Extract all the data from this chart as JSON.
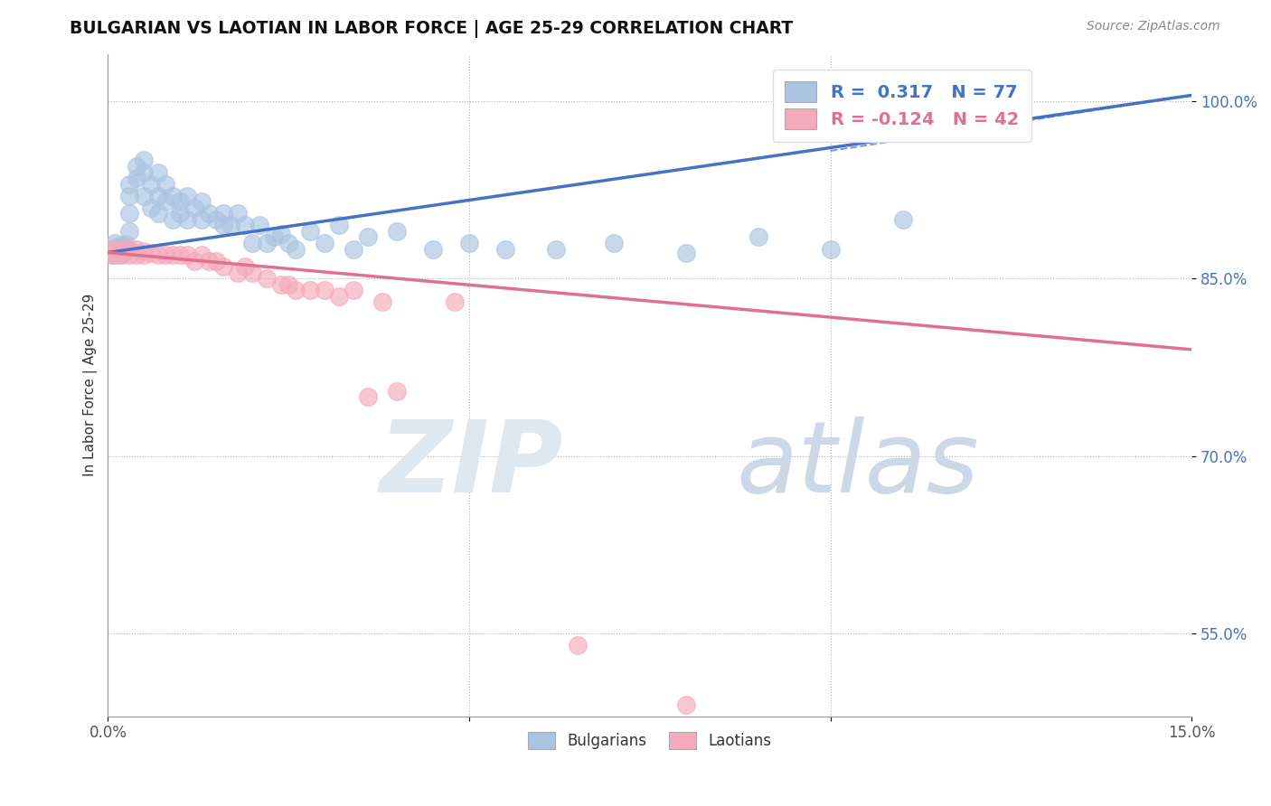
{
  "title": "BULGARIAN VS LAOTIAN IN LABOR FORCE | AGE 25-29 CORRELATION CHART",
  "source": "Source: ZipAtlas.com",
  "ylabel": "In Labor Force | Age 25-29",
  "xlim": [
    0.0,
    0.15
  ],
  "ylim": [
    0.48,
    1.04
  ],
  "xticks": [
    0.0,
    0.05,
    0.1,
    0.15
  ],
  "xticklabels": [
    "0.0%",
    "",
    "",
    "15.0%"
  ],
  "yticks": [
    0.55,
    0.7,
    0.85,
    1.0
  ],
  "yticklabels": [
    "55.0%",
    "70.0%",
    "85.0%",
    "100.0%"
  ],
  "bulgarian_R": 0.317,
  "bulgarian_N": 77,
  "laotian_R": -0.124,
  "laotian_N": 42,
  "blue_color": "#aac4e2",
  "pink_color": "#f5aabb",
  "blue_line_color": "#4472c4",
  "pink_line_color": "#e07090",
  "bg_color": "#ffffff",
  "blue_line_y0": 0.872,
  "blue_line_y1": 1.005,
  "pink_line_y0": 0.872,
  "pink_line_y1": 0.79,
  "bulgarian_x": [
    0.0005,
    0.0006,
    0.0007,
    0.0008,
    0.0009,
    0.001,
    0.001,
    0.0011,
    0.0012,
    0.0013,
    0.0014,
    0.0015,
    0.0016,
    0.0017,
    0.0018,
    0.0019,
    0.002,
    0.002,
    0.0021,
    0.0022,
    0.0023,
    0.0024,
    0.0025,
    0.003,
    0.003,
    0.003,
    0.003,
    0.004,
    0.004,
    0.005,
    0.005,
    0.005,
    0.006,
    0.006,
    0.007,
    0.007,
    0.007,
    0.008,
    0.008,
    0.009,
    0.009,
    0.01,
    0.01,
    0.011,
    0.011,
    0.012,
    0.013,
    0.013,
    0.014,
    0.015,
    0.016,
    0.016,
    0.017,
    0.018,
    0.019,
    0.02,
    0.021,
    0.022,
    0.023,
    0.024,
    0.025,
    0.026,
    0.028,
    0.03,
    0.032,
    0.034,
    0.036,
    0.04,
    0.045,
    0.05,
    0.055,
    0.062,
    0.07,
    0.08,
    0.09,
    0.1,
    0.11
  ],
  "bulgarian_y": [
    0.872,
    0.875,
    0.87,
    0.875,
    0.872,
    0.875,
    0.88,
    0.872,
    0.875,
    0.877,
    0.87,
    0.875,
    0.873,
    0.876,
    0.878,
    0.871,
    0.873,
    0.877,
    0.876,
    0.872,
    0.874,
    0.879,
    0.876,
    0.92,
    0.93,
    0.905,
    0.89,
    0.945,
    0.935,
    0.95,
    0.94,
    0.92,
    0.93,
    0.91,
    0.92,
    0.94,
    0.905,
    0.93,
    0.915,
    0.92,
    0.9,
    0.915,
    0.905,
    0.92,
    0.9,
    0.91,
    0.915,
    0.9,
    0.905,
    0.9,
    0.905,
    0.895,
    0.895,
    0.905,
    0.895,
    0.88,
    0.895,
    0.88,
    0.885,
    0.888,
    0.88,
    0.875,
    0.89,
    0.88,
    0.895,
    0.875,
    0.885,
    0.89,
    0.875,
    0.88,
    0.875,
    0.875,
    0.88,
    0.872,
    0.885,
    0.875,
    0.9
  ],
  "laotian_x": [
    0.0005,
    0.0007,
    0.0009,
    0.001,
    0.0012,
    0.0015,
    0.002,
    0.002,
    0.003,
    0.003,
    0.004,
    0.004,
    0.005,
    0.005,
    0.006,
    0.007,
    0.008,
    0.009,
    0.01,
    0.011,
    0.012,
    0.013,
    0.014,
    0.015,
    0.016,
    0.018,
    0.019,
    0.02,
    0.022,
    0.024,
    0.025,
    0.026,
    0.028,
    0.03,
    0.032,
    0.034,
    0.036,
    0.038,
    0.04,
    0.048,
    0.065,
    0.08
  ],
  "laotian_y": [
    0.875,
    0.87,
    0.872,
    0.873,
    0.871,
    0.874,
    0.875,
    0.87,
    0.875,
    0.87,
    0.875,
    0.87,
    0.873,
    0.87,
    0.872,
    0.87,
    0.87,
    0.87,
    0.87,
    0.87,
    0.865,
    0.87,
    0.865,
    0.865,
    0.86,
    0.855,
    0.86,
    0.855,
    0.85,
    0.845,
    0.845,
    0.84,
    0.84,
    0.84,
    0.835,
    0.84,
    0.75,
    0.83,
    0.755,
    0.83,
    0.54,
    0.49
  ]
}
